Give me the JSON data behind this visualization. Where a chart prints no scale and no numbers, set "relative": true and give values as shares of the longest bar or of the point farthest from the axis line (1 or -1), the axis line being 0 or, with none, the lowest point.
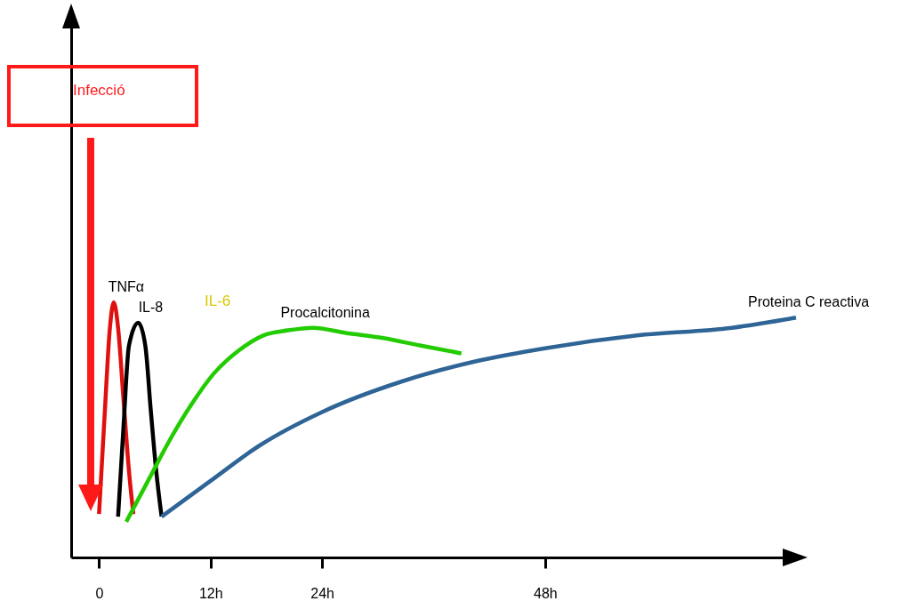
{
  "chart_data": {
    "type": "line",
    "relative": true,
    "tick_labels": "x",
    "xlim": [
      -3,
      75
    ],
    "xticks": [
      0,
      {
        "value": 12,
        "label": "12h"
      },
      {
        "value": 24,
        "label": "24h"
      },
      {
        "value": 48,
        "label": "48h"
      }
    ],
    "series": [
      {
        "name": "TNFα",
        "color": "#e01010",
        "x": [
          0,
          0.59,
          1.17,
          1.58,
          2.05,
          2.63,
          3.22,
          3.69
        ],
        "values": [
          0.17,
          0.55,
          0.9,
          1.0,
          0.9,
          0.62,
          0.34,
          0.17
        ]
      },
      {
        "name": "IL-8",
        "color": "#000000",
        "x": [
          2.05,
          2.63,
          3.22,
          4.22,
          4.98,
          5.56,
          6.15,
          6.73
        ],
        "values": [
          0.16,
          0.51,
          0.83,
          0.92,
          0.83,
          0.58,
          0.34,
          0.16
        ]
      },
      {
        "name": "Procalcitonina",
        "color": "#22cc00",
        "x": [
          2.93,
          5.27,
          7.61,
          9.95,
          12.33,
          15,
          17.67,
          20.33,
          23,
          26.53,
          30.58,
          34.63,
          38.99
        ],
        "values": [
          0.14,
          0.3,
          0.46,
          0.6,
          0.72,
          0.81,
          0.87,
          0.89,
          0.9,
          0.88,
          0.86,
          0.83,
          0.8
        ]
      },
      {
        "name": "Proteina C reactiva",
        "color": "#2e6496",
        "x": [
          6.73,
          12,
          17.33,
          24,
          32.6,
          40.7,
          48,
          57.9,
          68.1,
          75
        ],
        "values": [
          0.16,
          0.3,
          0.44,
          0.57,
          0.69,
          0.77,
          0.82,
          0.87,
          0.9,
          0.94
        ]
      }
    ],
    "annotations": [
      "Infecció",
      "IL-6"
    ]
  }
}
